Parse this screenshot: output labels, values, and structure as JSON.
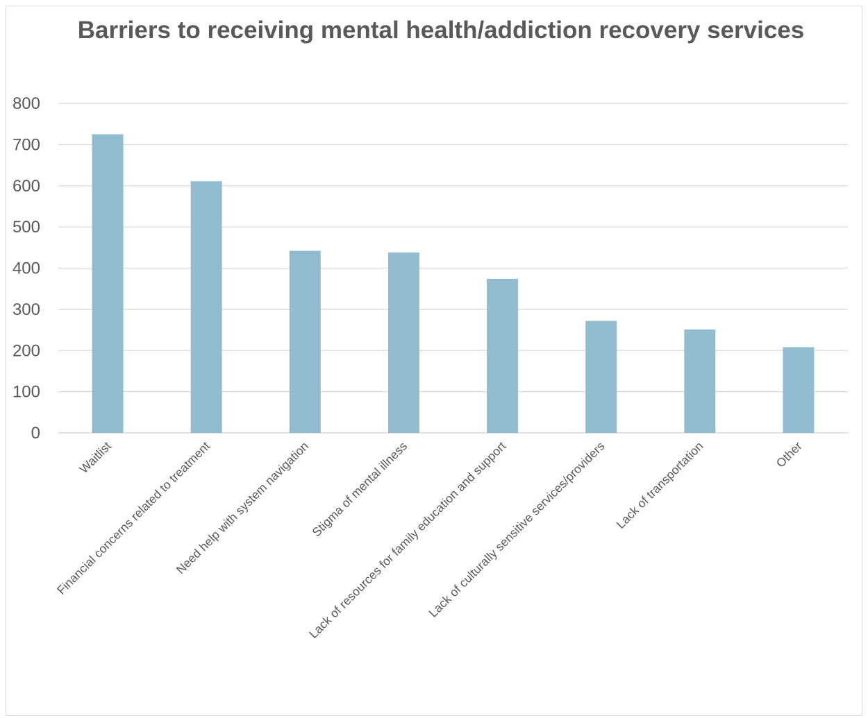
{
  "chart_data": {
    "type": "bar",
    "title": "Barriers to receiving mental health/addiction recovery services",
    "xlabel": "",
    "ylabel": "",
    "categories": [
      "Waitlist",
      "Financial concerns related to treatment",
      "Need help with system navigation",
      "Stigma of mental illness",
      "Lack of resources for family education and support",
      "Lack of culturally sensitive services/providers",
      "Lack of transportation",
      "Other"
    ],
    "values": [
      725,
      611,
      442,
      438,
      374,
      272,
      251,
      208
    ],
    "ylim": [
      0,
      800
    ],
    "yticks": [
      0,
      100,
      200,
      300,
      400,
      500,
      600,
      700,
      800
    ],
    "grid": true,
    "legend": "none",
    "bar_color": "#92bccf",
    "grid_color": "#d9d9d9",
    "text_color": "#595959"
  }
}
